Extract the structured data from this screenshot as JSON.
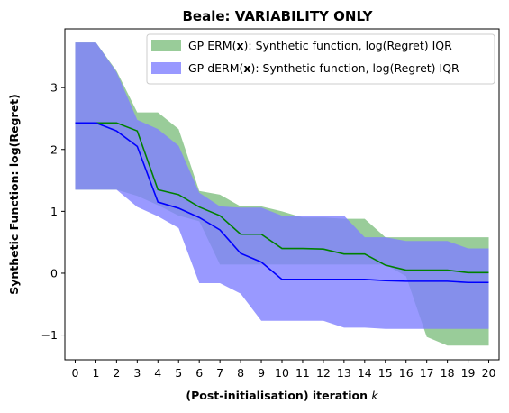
{
  "chart_data": {
    "type": "area",
    "title": "Beale: VARIABILITY ONLY",
    "xlabel": "(Post-initialisation) iteration",
    "xlabel_var": "k",
    "ylabel": "Synthetic Function: log(Regret)",
    "x": [
      0,
      1,
      2,
      3,
      4,
      5,
      6,
      7,
      8,
      9,
      10,
      11,
      12,
      13,
      14,
      15,
      16,
      17,
      18,
      19,
      20
    ],
    "xlim": [
      -0.5,
      20.5
    ],
    "ylim": [
      -1.4,
      3.95
    ],
    "yticks": [
      -1,
      0,
      1,
      2,
      3
    ],
    "grid": false,
    "legend_position": "upper right",
    "series": [
      {
        "name": "GP ERM(x): Synthetic function, log(Regret) IQR",
        "legend": {
          "pre": "GP ERM(",
          "bold": "x",
          "post": "):   Synthetic function, log(Regret) IQR"
        },
        "color": "#008000",
        "band_color": "#7fbf7f",
        "median": [
          2.43,
          2.43,
          2.43,
          2.3,
          1.35,
          1.27,
          1.07,
          0.93,
          0.63,
          0.63,
          0.4,
          0.4,
          0.39,
          0.31,
          0.31,
          0.13,
          0.05,
          0.05,
          0.05,
          0.01,
          0.01
        ],
        "q1": [
          1.35,
          1.35,
          1.35,
          1.25,
          1.1,
          0.93,
          0.84,
          0.14,
          0.14,
          0.14,
          0.14,
          0.14,
          0.14,
          0.14,
          0.14,
          0.14,
          -0.05,
          -1.03,
          -1.17,
          -1.17,
          -1.17
        ],
        "q3": [
          3.73,
          3.73,
          3.27,
          2.6,
          2.6,
          2.33,
          1.33,
          1.27,
          1.08,
          1.08,
          1.0,
          0.9,
          0.9,
          0.88,
          0.88,
          0.58,
          0.58,
          0.58,
          0.58,
          0.58,
          0.58
        ]
      },
      {
        "name": "GP dERM(x): Synthetic function, log(Regret) IQR",
        "legend": {
          "pre": "GP dERM(",
          "bold": "x",
          "post": "): Synthetic function, log(Regret) IQR"
        },
        "color": "#0000ff",
        "band_color": "#7f7fff",
        "median": [
          2.43,
          2.43,
          2.3,
          2.05,
          1.15,
          1.05,
          0.9,
          0.7,
          0.32,
          0.18,
          -0.1,
          -0.1,
          -0.1,
          -0.1,
          -0.1,
          -0.12,
          -0.13,
          -0.13,
          -0.13,
          -0.15,
          -0.15
        ],
        "q1": [
          1.35,
          1.35,
          1.35,
          1.07,
          0.92,
          0.73,
          -0.16,
          -0.16,
          -0.33,
          -0.77,
          -0.77,
          -0.77,
          -0.77,
          -0.88,
          -0.88,
          -0.9,
          -0.9,
          -0.9,
          -0.9,
          -0.9,
          -0.9
        ],
        "q3": [
          3.73,
          3.73,
          3.25,
          2.48,
          2.33,
          2.06,
          1.3,
          1.08,
          1.06,
          1.06,
          0.93,
          0.93,
          0.93,
          0.93,
          0.58,
          0.58,
          0.52,
          0.52,
          0.52,
          0.4,
          0.4
        ]
      }
    ]
  }
}
